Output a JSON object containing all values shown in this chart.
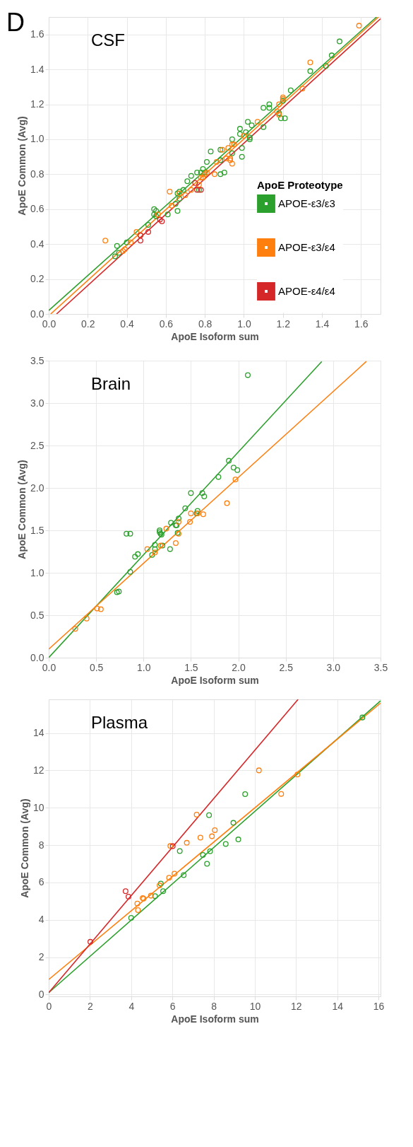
{
  "chart_data": [
    {
      "type": "scatter",
      "title": "CSF",
      "annotations": [
        "D"
      ],
      "xlabel": "ApoE Isoform sum",
      "ylabel": "ApoE Common (Avg)",
      "legend_title": "ApoE Proteotype",
      "legend": "right",
      "grid": true,
      "marker": "circle",
      "xlim": [
        0,
        1.7
      ],
      "ylim": [
        0,
        1.7
      ],
      "xticks": [
        {
          "value": 0,
          "label": "0.0"
        },
        0.2,
        0.4,
        0.6,
        0.8,
        {
          "value": 1,
          "label": "1.0"
        },
        1.2,
        1.4,
        1.6
      ],
      "yticks": [
        {
          "value": 0,
          "label": "0.0"
        },
        0.2,
        0.4,
        0.6,
        0.8,
        {
          "value": 1,
          "label": "1.0"
        },
        1.2,
        1.4,
        1.6
      ],
      "series": [
        {
          "name": "APOE-ε3/ε3",
          "color": "#2ca02c",
          "x": [
            1.49,
            1.45,
            1.42,
            1.34,
            1.24,
            1.2,
            1.13,
            1.13,
            1.1,
            1.18,
            1.19,
            1.21,
            1.1,
            1.02,
            1.04,
            1.01,
            0.98,
            0.98,
            1.03,
            1.03,
            0.94,
            0.94,
            0.99,
            0.99,
            0.83,
            0.88,
            0.88,
            0.81,
            0.88,
            0.9,
            0.79,
            0.8,
            0.78,
            0.76,
            0.73,
            0.71,
            0.77,
            0.69,
            0.67,
            0.66,
            0.65,
            0.66,
            0.67,
            0.61,
            0.54,
            0.55,
            0.54,
            0.55,
            0.51,
            0.4,
            0.35,
            0.36,
            0.34
          ],
          "values": [
            1.56,
            1.48,
            1.42,
            1.39,
            1.28,
            1.22,
            1.2,
            1.18,
            1.18,
            1.15,
            1.12,
            1.12,
            1.07,
            1.1,
            1.08,
            1.04,
            1.06,
            1.03,
            1.01,
            1.0,
            1.0,
            0.92,
            0.95,
            0.9,
            0.93,
            0.94,
            0.88,
            0.87,
            0.8,
            0.81,
            0.83,
            0.81,
            0.81,
            0.81,
            0.79,
            0.76,
            0.71,
            0.71,
            0.7,
            0.69,
            0.63,
            0.59,
            0.66,
            0.57,
            0.6,
            0.59,
            0.57,
            0.56,
            0.51,
            0.41,
            0.39,
            0.35,
            0.33
          ]
        },
        {
          "name": "APOE-ε3/ε4",
          "color": "#ff7f0e",
          "x": [
            1.59,
            1.34,
            1.3,
            1.2,
            1.2,
            1.18,
            1.17,
            1.18,
            1.07,
            1.0,
            0.94,
            0.95,
            0.92,
            0.91,
            0.93,
            0.93,
            0.94,
            0.89,
            0.86,
            0.85,
            0.81,
            0.8,
            0.79,
            0.78,
            0.77,
            0.73,
            0.7,
            0.67,
            0.62,
            0.63,
            0.56,
            0.45,
            0.47,
            0.42,
            0.39,
            0.38,
            0.29
          ],
          "values": [
            1.65,
            1.44,
            1.29,
            1.24,
            1.23,
            1.2,
            1.16,
            1.14,
            1.1,
            1.02,
            0.97,
            0.97,
            0.95,
            0.89,
            0.89,
            0.88,
            0.86,
            0.94,
            0.87,
            0.8,
            0.81,
            0.8,
            0.78,
            0.78,
            0.74,
            0.71,
            0.68,
            0.69,
            0.7,
            0.62,
            0.57,
            0.47,
            0.45,
            0.41,
            0.37,
            0.36,
            0.42
          ]
        },
        {
          "name": "APOE-ε4/ε4",
          "color": "#d62728",
          "x": [
            0.75,
            0.76,
            0.78,
            0.57,
            0.58,
            0.51,
            0.47,
            0.47
          ],
          "values": [
            0.75,
            0.71,
            0.71,
            0.54,
            0.53,
            0.47,
            0.45,
            0.42
          ]
        },
        {
          "type": "line",
          "marker": "none",
          "color": "#2ca02c",
          "x": [
            0,
            1.68
          ],
          "values": [
            0.02,
            1.7
          ]
        },
        {
          "type": "line",
          "marker": "none",
          "color": "#ff7f0e",
          "x": [
            0.01,
            1.69
          ],
          "values": [
            0,
            1.7
          ]
        },
        {
          "type": "line",
          "marker": "none",
          "color": "#d62728",
          "x": [
            0.04,
            1.7
          ],
          "values": [
            0,
            1.69
          ]
        }
      ]
    },
    {
      "type": "scatter",
      "title": "Brain",
      "xlabel": "ApoE Isoform sum",
      "ylabel": "ApoE Common (Avg)",
      "grid": true,
      "marker": "circle",
      "xlim": [
        0,
        3.5
      ],
      "ylim": [
        0,
        3.5
      ],
      "xticks": [
        {
          "value": 0,
          "label": "0.0"
        },
        0.5,
        {
          "value": 1,
          "label": "1.0"
        },
        1.5,
        {
          "value": 2,
          "label": "2.0"
        },
        2.5,
        {
          "value": 3,
          "label": "3.0"
        },
        3.5
      ],
      "yticks": [
        {
          "value": 0,
          "label": "0.0"
        },
        0.5,
        {
          "value": 1,
          "label": "1.0"
        },
        1.5,
        {
          "value": 2,
          "label": "2.0"
        },
        2.5,
        {
          "value": 3,
          "label": "3.0"
        },
        3.5
      ],
      "series": [
        {
          "color": "#2ca02c",
          "x": [
            2.1,
            1.9,
            1.95,
            1.99,
            1.79,
            1.5,
            1.62,
            1.64,
            1.57,
            1.56,
            1.44,
            1.37,
            1.29,
            1.34,
            1.35,
            1.17,
            1.17,
            1.18,
            1.19,
            1.36,
            0.82,
            0.86,
            1.12,
            1.12,
            1.2,
            1.28,
            1.09,
            0.91,
            0.94,
            0.86,
            0.72,
            0.74
          ],
          "values": [
            3.33,
            2.32,
            2.24,
            2.21,
            2.13,
            1.94,
            1.94,
            1.9,
            1.73,
            1.7,
            1.76,
            1.64,
            1.59,
            1.56,
            1.56,
            1.5,
            1.48,
            1.46,
            1.45,
            1.47,
            1.46,
            1.46,
            1.33,
            1.28,
            1.32,
            1.28,
            1.21,
            1.19,
            1.22,
            1.01,
            0.77,
            0.78
          ]
        },
        {
          "color": "#ff7f0e",
          "x": [
            1.97,
            1.88,
            1.5,
            1.57,
            1.63,
            1.49,
            1.37,
            1.24,
            1.37,
            1.04,
            1.18,
            1.12,
            1.34,
            0.51,
            0.55,
            0.4,
            0.28
          ],
          "values": [
            2.1,
            1.82,
            1.7,
            1.7,
            1.69,
            1.6,
            1.6,
            1.52,
            1.46,
            1.28,
            1.32,
            1.24,
            1.35,
            0.58,
            0.57,
            0.46,
            0.34
          ]
        },
        {
          "type": "line",
          "marker": "none",
          "color": "#2ca02c",
          "x": [
            0,
            2.88
          ],
          "values": [
            0,
            3.49
          ]
        },
        {
          "type": "line",
          "marker": "none",
          "color": "#ff7f0e",
          "x": [
            0,
            3.35
          ],
          "values": [
            0.1,
            3.49
          ]
        }
      ]
    },
    {
      "type": "scatter",
      "title": "Plasma",
      "xlabel": "ApoE Isoform sum",
      "ylabel": "ApoE Common (Avg)",
      "grid": true,
      "marker": "circle",
      "xlim": [
        0,
        16.1
      ],
      "ylim": [
        -0.1,
        15.8
      ],
      "xticks": [
        0,
        2,
        4,
        6,
        8,
        10,
        12,
        14,
        16
      ],
      "yticks": [
        0,
        2,
        4,
        6,
        8,
        10,
        12,
        14
      ],
      "series": [
        {
          "color": "#2ca02c",
          "x": [
            15.22,
            9.53,
            8.96,
            7.78,
            6.36,
            7.48,
            7.83,
            8.59,
            9.2,
            7.68,
            4.0,
            5.16,
            5.44,
            5.55,
            6.55
          ],
          "values": [
            14.83,
            10.73,
            9.19,
            9.6,
            7.68,
            7.47,
            7.67,
            8.06,
            8.3,
            7.0,
            4.1,
            5.27,
            5.94,
            5.53,
            6.39
          ]
        },
        {
          "color": "#ff7f0e",
          "x": [
            7.18,
            10.2,
            12.07,
            11.28,
            8.06,
            7.92,
            7.36,
            6.7,
            5.9,
            4.3,
            4.33,
            4.56,
            4.6,
            4.96,
            5.38,
            5.84,
            6.1
          ],
          "values": [
            9.63,
            12.0,
            11.78,
            10.74,
            8.8,
            8.47,
            8.4,
            8.12,
            7.95,
            4.87,
            4.52,
            5.16,
            5.13,
            5.29,
            5.84,
            6.25,
            6.47
          ]
        },
        {
          "color": "#d62728",
          "x": [
            6.02,
            3.73,
            3.87,
            2.02
          ],
          "values": [
            7.94,
            5.53,
            5.24,
            2.82
          ]
        },
        {
          "type": "line",
          "marker": "none",
          "color": "#2ca02c",
          "x": [
            0,
            16.1
          ],
          "values": [
            0.1,
            15.72
          ]
        },
        {
          "type": "line",
          "marker": "none",
          "color": "#ff7f0e",
          "x": [
            0,
            16.1
          ],
          "values": [
            0.8,
            15.6
          ]
        },
        {
          "type": "line",
          "marker": "none",
          "color": "#d62728",
          "x": [
            0,
            12.1
          ],
          "values": [
            0.1,
            15.8
          ]
        }
      ]
    }
  ]
}
